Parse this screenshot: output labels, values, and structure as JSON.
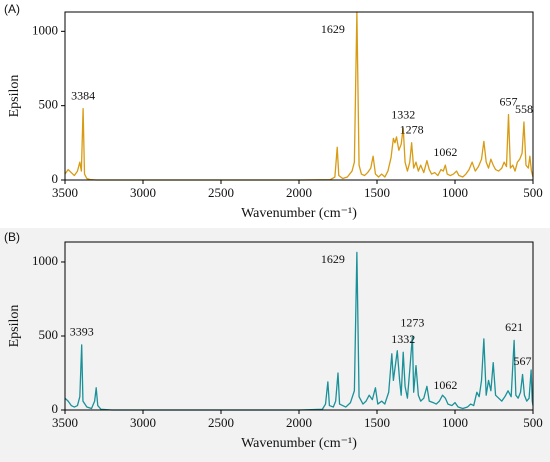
{
  "chart_data": [
    {
      "type": "line",
      "panel_label": "(A)",
      "x_label": "Wavenumber (cm⁻¹)",
      "y_label": "Epsilon",
      "xlim": [
        3500,
        500
      ],
      "ylim": [
        0,
        1130
      ],
      "xticks": [
        3500,
        3000,
        2500,
        2000,
        1500,
        1000,
        500
      ],
      "yticks": [
        0,
        500,
        1000
      ],
      "color": "#d89b14",
      "x": [
        3500,
        3480,
        3460,
        3440,
        3420,
        3405,
        3395,
        3384,
        3375,
        3360,
        3340,
        3300,
        2000,
        1800,
        1770,
        1755,
        1745,
        1720,
        1690,
        1660,
        1645,
        1629,
        1615,
        1600,
        1580,
        1560,
        1540,
        1525,
        1510,
        1490,
        1470,
        1450,
        1430,
        1410,
        1395,
        1385,
        1375,
        1360,
        1345,
        1332,
        1320,
        1305,
        1290,
        1278,
        1265,
        1250,
        1235,
        1220,
        1200,
        1180,
        1165,
        1150,
        1130,
        1110,
        1090,
        1075,
        1062,
        1050,
        1030,
        1010,
        990,
        975,
        950,
        930,
        910,
        890,
        870,
        850,
        830,
        815,
        800,
        785,
        770,
        755,
        740,
        720,
        700,
        685,
        670,
        657,
        645,
        630,
        615,
        600,
        585,
        570,
        558,
        545,
        530,
        520,
        510,
        500
      ],
      "values": [
        40,
        70,
        50,
        30,
        60,
        120,
        60,
        480,
        40,
        10,
        3,
        0,
        0,
        2,
        20,
        220,
        30,
        10,
        20,
        60,
        120,
        1130,
        100,
        40,
        30,
        50,
        80,
        160,
        40,
        20,
        40,
        20,
        60,
        150,
        280,
        250,
        290,
        200,
        240,
        350,
        120,
        60,
        120,
        250,
        80,
        120,
        60,
        100,
        50,
        130,
        70,
        40,
        50,
        30,
        70,
        60,
        100,
        40,
        30,
        40,
        60,
        30,
        20,
        40,
        70,
        120,
        60,
        90,
        140,
        260,
        120,
        80,
        140,
        100,
        70,
        60,
        80,
        120,
        90,
        440,
        80,
        100,
        60,
        120,
        140,
        180,
        390,
        100,
        80,
        160,
        60,
        20
      ],
      "annotations": [
        {
          "x": 3384
        },
        {
          "x": 1629
        },
        {
          "x": 1332
        },
        {
          "x": 1278
        },
        {
          "x": 1062
        },
        {
          "x": 657
        },
        {
          "x": 558
        }
      ]
    },
    {
      "type": "line",
      "panel_label": "(B)",
      "x_label": "Wavenumber (cm⁻¹)",
      "y_label": "Epsilon",
      "xlim": [
        3500,
        500
      ],
      "ylim": [
        0,
        1135
      ],
      "xticks": [
        3500,
        3000,
        2500,
        2000,
        1500,
        1000,
        500
      ],
      "yticks": [
        0,
        500,
        1000
      ],
      "color": "#1a9199",
      "x": [
        3500,
        3480,
        3460,
        3440,
        3420,
        3405,
        3393,
        3385,
        3360,
        3330,
        3310,
        3300,
        3290,
        3270,
        3200,
        2000,
        1850,
        1830,
        1815,
        1805,
        1780,
        1765,
        1750,
        1740,
        1700,
        1670,
        1645,
        1629,
        1615,
        1590,
        1570,
        1550,
        1530,
        1510,
        1495,
        1470,
        1450,
        1425,
        1405,
        1395,
        1380,
        1370,
        1355,
        1345,
        1332,
        1320,
        1305,
        1290,
        1273,
        1265,
        1250,
        1235,
        1220,
        1200,
        1180,
        1165,
        1140,
        1120,
        1100,
        1080,
        1062,
        1045,
        1020,
        1000,
        980,
        950,
        920,
        900,
        880,
        860,
        845,
        830,
        815,
        800,
        785,
        770,
        755,
        740,
        720,
        700,
        680,
        660,
        640,
        621,
        610,
        595,
        580,
        567,
        555,
        540,
        525,
        512,
        505,
        500
      ],
      "values": [
        80,
        60,
        30,
        20,
        30,
        90,
        440,
        60,
        20,
        10,
        60,
        150,
        30,
        5,
        0,
        0,
        5,
        40,
        190,
        30,
        20,
        60,
        250,
        40,
        20,
        50,
        130,
        1065,
        90,
        40,
        60,
        100,
        70,
        150,
        40,
        60,
        40,
        120,
        380,
        200,
        320,
        400,
        200,
        100,
        390,
        160,
        80,
        270,
        500,
        120,
        300,
        100,
        60,
        80,
        160,
        60,
        50,
        40,
        60,
        100,
        80,
        40,
        30,
        50,
        20,
        10,
        20,
        40,
        30,
        120,
        90,
        200,
        480,
        100,
        200,
        130,
        320,
        100,
        80,
        60,
        90,
        130,
        90,
        470,
        100,
        80,
        120,
        240,
        100,
        60,
        80,
        270,
        60,
        30
      ],
      "annotations": [
        {
          "x": 3393
        },
        {
          "x": 1629
        },
        {
          "x": 1332
        },
        {
          "x": 1273
        },
        {
          "x": 1062
        },
        {
          "x": 621
        },
        {
          "x": 567
        }
      ]
    }
  ]
}
